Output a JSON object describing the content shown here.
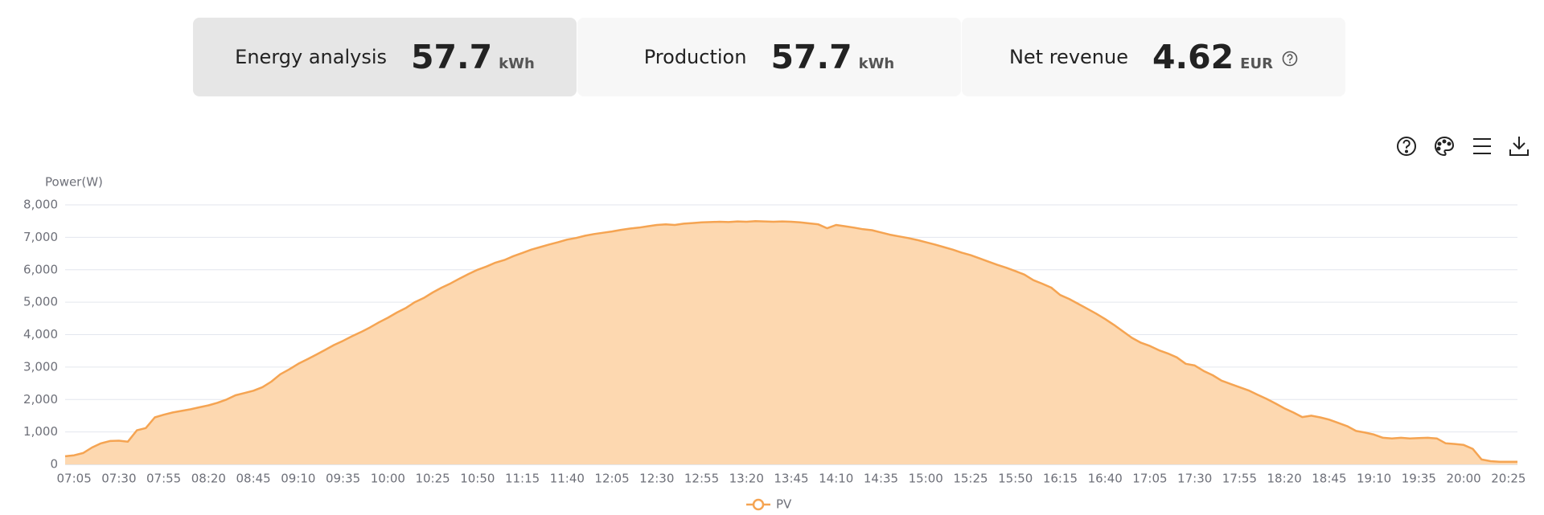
{
  "cards": [
    {
      "label": "Energy analysis",
      "value": "57.7",
      "unit": "kWh"
    },
    {
      "label": "Production",
      "value": "57.7",
      "unit": "kWh"
    },
    {
      "label": "Net revenue",
      "value": "4.62",
      "unit": "EUR"
    }
  ],
  "chart_data": {
    "type": "line",
    "area": true,
    "y_label": "Power(W)",
    "grid": true,
    "legend": "bottom",
    "categories": [
      null,
      "07:05",
      null,
      null,
      null,
      null,
      "07:30",
      null,
      null,
      null,
      null,
      "07:55",
      null,
      null,
      null,
      null,
      "08:20",
      null,
      null,
      null,
      null,
      "08:45",
      null,
      null,
      null,
      null,
      "09:10",
      null,
      null,
      null,
      null,
      "09:35",
      null,
      null,
      null,
      null,
      "10:00",
      null,
      null,
      null,
      null,
      "10:25",
      null,
      null,
      null,
      null,
      "10:50",
      null,
      null,
      null,
      null,
      "11:15",
      null,
      null,
      null,
      null,
      "11:40",
      null,
      null,
      null,
      null,
      "12:05",
      null,
      null,
      null,
      null,
      "12:30",
      null,
      null,
      null,
      null,
      "12:55",
      null,
      null,
      null,
      null,
      "13:20",
      null,
      null,
      null,
      null,
      "13:45",
      null,
      null,
      null,
      null,
      "14:10",
      null,
      null,
      null,
      null,
      "14:35",
      null,
      null,
      null,
      null,
      "15:00",
      null,
      null,
      null,
      null,
      "15:25",
      null,
      null,
      null,
      null,
      "15:50",
      null,
      null,
      null,
      null,
      "16:15",
      null,
      null,
      null,
      null,
      "16:40",
      null,
      null,
      null,
      null,
      "17:05",
      null,
      null,
      null,
      null,
      "17:30",
      null,
      null,
      null,
      null,
      "17:55",
      null,
      null,
      null,
      null,
      "18:20",
      null,
      null,
      null,
      null,
      "18:45",
      null,
      null,
      null,
      null,
      "19:10",
      null,
      null,
      null,
      null,
      "19:35",
      null,
      null,
      null,
      null,
      "20:00",
      null,
      null,
      null,
      null,
      "20:25",
      null
    ],
    "series": [
      {
        "name": "PV",
        "color": "#f5a452",
        "fill": "#fdd8b0",
        "values": [
          250,
          280,
          350,
          520,
          650,
          720,
          730,
          700,
          1050,
          1120,
          1450,
          1530,
          1600,
          1650,
          1700,
          1760,
          1820,
          1900,
          2000,
          2130,
          2200,
          2270,
          2380,
          2550,
          2780,
          2930,
          3100,
          3240,
          3380,
          3530,
          3680,
          3810,
          3950,
          4080,
          4220,
          4380,
          4520,
          4680,
          4820,
          5000,
          5130,
          5300,
          5450,
          5580,
          5730,
          5870,
          6000,
          6100,
          6220,
          6300,
          6420,
          6520,
          6620,
          6700,
          6780,
          6850,
          6930,
          6980,
          7050,
          7100,
          7140,
          7180,
          7230,
          7270,
          7300,
          7340,
          7380,
          7400,
          7380,
          7420,
          7440,
          7460,
          7470,
          7480,
          7470,
          7490,
          7480,
          7500,
          7490,
          7480,
          7490,
          7480,
          7460,
          7430,
          7400,
          7280,
          7380,
          7340,
          7300,
          7250,
          7220,
          7150,
          7080,
          7030,
          6980,
          6920,
          6850,
          6780,
          6700,
          6620,
          6530,
          6450,
          6350,
          6250,
          6150,
          6060,
          5960,
          5850,
          5680,
          5570,
          5450,
          5220,
          5100,
          4950,
          4800,
          4650,
          4480,
          4300,
          4100,
          3900,
          3750,
          3650,
          3520,
          3420,
          3300,
          3100,
          3050,
          2880,
          2750,
          2580,
          2480,
          2380,
          2280,
          2150,
          2020,
          1880,
          1730,
          1600,
          1460,
          1500,
          1450,
          1380,
          1280,
          1180,
          1030,
          980,
          920,
          820,
          800,
          820,
          800,
          810,
          820,
          800,
          650,
          630,
          600,
          480,
          150,
          100,
          80,
          80,
          80
        ]
      }
    ],
    "ylim": [
      0,
      8000
    ],
    "yticks": [
      0,
      {
        "value": 1000,
        "label": "1,000"
      },
      {
        "value": 2000,
        "label": "2,000"
      },
      {
        "value": 3000,
        "label": "3,000"
      },
      {
        "value": 4000,
        "label": "4,000"
      },
      {
        "value": 5000,
        "label": "5,000"
      },
      {
        "value": 6000,
        "label": "6,000"
      },
      {
        "value": 7000,
        "label": "7,000"
      },
      {
        "value": 8000,
        "label": "8,000"
      }
    ]
  }
}
